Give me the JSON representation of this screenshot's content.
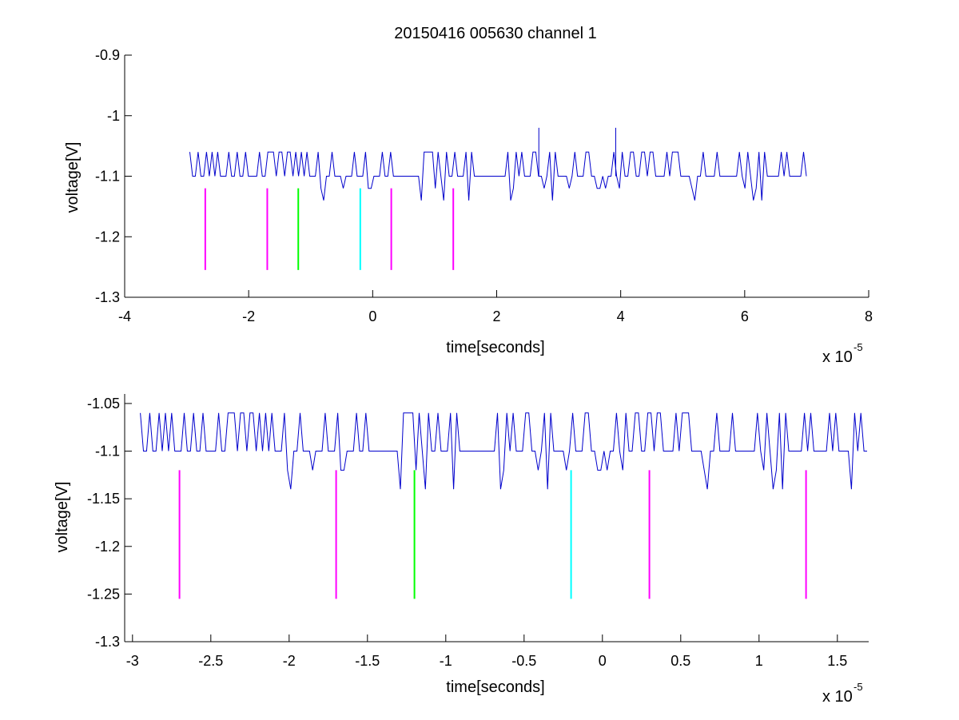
{
  "title": "20150416 005630 channel 1",
  "chart_data": [
    {
      "type": "line",
      "xlabel": "time[seconds]",
      "ylabel": "voltage[V]",
      "x_exponent_label": "x 10",
      "x_exponent": "-5",
      "xlim": [
        -4,
        8
      ],
      "ylim": [
        -1.3,
        -0.9
      ],
      "xticks": [
        -4,
        -2,
        0,
        2,
        4,
        6,
        8
      ],
      "xtick_labels": [
        "-4",
        "-2",
        "0",
        "2",
        "4",
        "6",
        "8"
      ],
      "yticks": [
        -1.3,
        -1.2,
        -1.1,
        -1.0,
        -0.9
      ],
      "ytick_labels": [
        "-1.3",
        "-1.2",
        "-1.1",
        "-1",
        "-0.9"
      ],
      "grid": false,
      "series": [
        {
          "color": "#0000cc",
          "x_start": -2.95,
          "x_end": 7.0,
          "baseline": -1.1,
          "upper_level": -1.06,
          "lower_level": -1.14,
          "spikes": [
            {
              "x": 2.68,
              "y": -1.02
            },
            {
              "x": 3.92,
              "y": -1.02
            }
          ]
        }
      ],
      "markers": [
        {
          "x": -2.7,
          "y_top": -1.12,
          "y_bottom": -1.255,
          "color": "#ff00ff"
        },
        {
          "x": -1.7,
          "y_top": -1.12,
          "y_bottom": -1.255,
          "color": "#ff00ff"
        },
        {
          "x": -1.2,
          "y_top": -1.12,
          "y_bottom": -1.255,
          "color": "#00ff00"
        },
        {
          "x": -0.2,
          "y_top": -1.12,
          "y_bottom": -1.255,
          "color": "#00ffff"
        },
        {
          "x": 0.3,
          "y_top": -1.12,
          "y_bottom": -1.255,
          "color": "#ff00ff"
        },
        {
          "x": 1.3,
          "y_top": -1.12,
          "y_bottom": -1.255,
          "color": "#ff00ff"
        }
      ]
    },
    {
      "type": "line",
      "xlabel": "time[seconds]",
      "ylabel": "voltage[V]",
      "x_exponent_label": "x 10",
      "x_exponent": "-5",
      "xlim": [
        -3.05,
        1.7
      ],
      "ylim": [
        -1.3,
        -1.04
      ],
      "xticks": [
        -3,
        -2.5,
        -2,
        -1.5,
        -1,
        -0.5,
        0,
        0.5,
        1,
        1.5
      ],
      "xtick_labels": [
        "-3",
        "-2.5",
        "-2",
        "-1.5",
        "-1",
        "-0.5",
        "0",
        "0.5",
        "1",
        "1.5"
      ],
      "yticks": [
        -1.3,
        -1.25,
        -1.2,
        -1.15,
        -1.1,
        -1.05
      ],
      "ytick_labels": [
        "-1.3",
        "-1.25",
        "-1.2",
        "-1.15",
        "-1.1",
        "-1.05"
      ],
      "grid": false,
      "series": [
        {
          "color": "#0000cc",
          "x_start": -2.95,
          "x_end": 1.7,
          "baseline": -1.1,
          "upper_level": -1.06,
          "lower_level": -1.14,
          "spikes": []
        }
      ],
      "markers": [
        {
          "x": -2.7,
          "y_top": -1.12,
          "y_bottom": -1.255,
          "color": "#ff00ff"
        },
        {
          "x": -1.7,
          "y_top": -1.12,
          "y_bottom": -1.255,
          "color": "#ff00ff"
        },
        {
          "x": -1.2,
          "y_top": -1.12,
          "y_bottom": -1.255,
          "color": "#00ff00"
        },
        {
          "x": -0.2,
          "y_top": -1.12,
          "y_bottom": -1.255,
          "color": "#00ffff"
        },
        {
          "x": 0.3,
          "y_top": -1.12,
          "y_bottom": -1.255,
          "color": "#ff00ff"
        },
        {
          "x": 1.3,
          "y_top": -1.12,
          "y_bottom": -1.255,
          "color": "#ff00ff"
        }
      ]
    }
  ]
}
